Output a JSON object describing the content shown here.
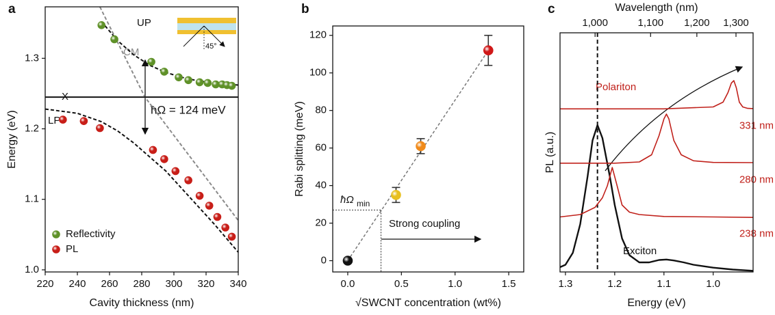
{
  "chart_data": [
    {
      "type": "scatter",
      "panel": "a",
      "xlabel": "Cavity thickness (nm)",
      "ylabel": "Energy (eV)",
      "xlim": [
        220,
        340
      ],
      "xticks": [
        220,
        240,
        260,
        280,
        300,
        320,
        340
      ],
      "ylim": [
        0.997,
        1.373
      ],
      "yticks": [
        {
          "value": 1.0,
          "label": "1.0"
        },
        1.1,
        1.2,
        1.3
      ],
      "legend": "lower left",
      "series": [
        {
          "name": "Reflectivity",
          "color": "#5f9128",
          "x": [
            255,
            263,
            286,
            294,
            303,
            309,
            316,
            321,
            326,
            330,
            333,
            336
          ],
          "values": [
            1.347,
            1.327,
            1.295,
            1.281,
            1.273,
            1.269,
            1.266,
            1.265,
            1.263,
            1.263,
            1.262,
            1.261
          ]
        },
        {
          "name": "PL",
          "color": "#c81e18",
          "x": [
            231,
            244,
            254,
            287,
            294,
            301,
            309,
            316,
            322,
            327,
            332,
            336
          ],
          "values": [
            1.213,
            1.211,
            1.201,
            1.17,
            1.157,
            1.14,
            1.127,
            1.105,
            1.091,
            1.075,
            1.06,
            1.047
          ]
        }
      ],
      "curves": [
        {
          "x": [
            255,
            265,
            275,
            285,
            295,
            305,
            315,
            325,
            340
          ],
          "values": [
            1.352,
            1.325,
            1.305,
            1.29,
            1.28,
            1.273,
            1.268,
            1.265,
            1.262
          ],
          "color": "#111111",
          "dash": true
        },
        {
          "x": [
            220,
            240,
            255,
            265,
            275,
            285,
            295,
            305,
            315,
            325,
            340
          ],
          "values": [
            1.228,
            1.222,
            1.21,
            1.197,
            1.18,
            1.16,
            1.14,
            1.115,
            1.09,
            1.065,
            1.025
          ],
          "color": "#111111",
          "dash": true
        },
        {
          "x": [
            254,
            282,
            340
          ],
          "values": [
            1.373,
            1.245,
            1.07
          ],
          "color": "#8a8a8a",
          "dash": true
        },
        {
          "x": [
            220,
            340
          ],
          "values": [
            1.245,
            1.245
          ],
          "color": "#111111",
          "dash": false
        }
      ],
      "labels": {
        "up": "UP",
        "lp": "LP",
        "cm": "CM",
        "exciton": "X",
        "splitting": "ħΩ = 124 meV",
        "angle": "45°"
      }
    },
    {
      "type": "errorbar",
      "panel": "b",
      "xlabel": "√SWCNT concentration (wt%)",
      "ylabel": "Rabi splitting (meV)",
      "xlim": [
        -0.14,
        1.64
      ],
      "xticks": [
        {
          "value": 0,
          "label": "0.0"
        },
        0.5,
        {
          "value": 1,
          "label": "1.0"
        },
        1.5
      ],
      "ylim": [
        -6,
        125
      ],
      "yticks": [
        0,
        20,
        40,
        60,
        80,
        100,
        120
      ],
      "x": [
        0,
        0.45,
        0.68,
        1.31
      ],
      "values": [
        0,
        35,
        61,
        112
      ],
      "errors": [
        0,
        4,
        4,
        8
      ],
      "colors": [
        "#111111",
        "#e8c020",
        "#f08a1a",
        "#d01818"
      ],
      "fit": {
        "x": [
          0,
          1.31
        ],
        "values": [
          0,
          112
        ]
      },
      "threshold": {
        "x": 0.31,
        "value": 27,
        "label": "ħΩ",
        "label_sub": "min"
      },
      "region_label": "Strong coupling"
    },
    {
      "type": "spectra",
      "panel": "c",
      "xlabel": "Energy (eV)",
      "ylabel": "PL (a.u.)",
      "x2label": "Wavelength (nm)",
      "xlim": [
        1.311,
        0.919
      ],
      "xticks": [
        1.3,
        1.2,
        1.1,
        {
          "value": 1.0,
          "label": "1.0"
        }
      ],
      "x2ticks": [
        {
          "value": 1000,
          "label": "1,000"
        },
        {
          "value": 1100,
          "label": "1,100"
        },
        {
          "value": 1200,
          "label": "1,200"
        },
        {
          "value": 1300,
          "label": "1,300"
        }
      ],
      "ylim": [
        0,
        1
      ],
      "exciton_line": 1.235,
      "series": [
        {
          "name": "Exciton",
          "color": "#111111",
          "x": [
            1.311,
            1.3,
            1.285,
            1.27,
            1.255,
            1.245,
            1.235,
            1.225,
            1.21,
            1.2,
            1.185,
            1.17,
            1.15,
            1.13,
            1.11,
            1.095,
            1.08,
            1.06,
            1.04,
            1.0,
            0.96,
            0.919
          ],
          "values": [
            0.02,
            0.03,
            0.08,
            0.2,
            0.4,
            0.55,
            0.614,
            0.56,
            0.4,
            0.28,
            0.14,
            0.07,
            0.04,
            0.04,
            0.05,
            0.052,
            0.048,
            0.04,
            0.03,
            0.018,
            0.01,
            0.005
          ]
        },
        {
          "name": "238 nm",
          "color": "#c0201a",
          "x": [
            1.311,
            1.27,
            1.24,
            1.225,
            1.215,
            1.205,
            1.195,
            1.185,
            1.17,
            1.15,
            1.1,
            1.0,
            0.919
          ],
          "values": [
            0.23,
            0.24,
            0.27,
            0.31,
            0.36,
            0.437,
            0.36,
            0.28,
            0.25,
            0.24,
            0.232,
            0.23,
            0.228
          ]
        },
        {
          "name": "280 nm",
          "color": "#c0201a",
          "x": [
            1.311,
            1.2,
            1.15,
            1.125,
            1.11,
            1.1,
            1.095,
            1.09,
            1.08,
            1.065,
            1.04,
            1.0,
            0.919
          ],
          "values": [
            0.455,
            0.455,
            0.46,
            0.49,
            0.57,
            0.64,
            0.66,
            0.64,
            0.55,
            0.49,
            0.465,
            0.458,
            0.457
          ]
        },
        {
          "name": "331 nm",
          "color": "#c0201a",
          "x": [
            1.311,
            1.1,
            1.0,
            0.98,
            0.97,
            0.963,
            0.958,
            0.953,
            0.947,
            0.94,
            0.93,
            0.919
          ],
          "values": [
            0.682,
            0.682,
            0.69,
            0.71,
            0.75,
            0.79,
            0.8,
            0.77,
            0.71,
            0.69,
            0.684,
            0.683
          ]
        }
      ],
      "annotation": "Polariton"
    }
  ]
}
